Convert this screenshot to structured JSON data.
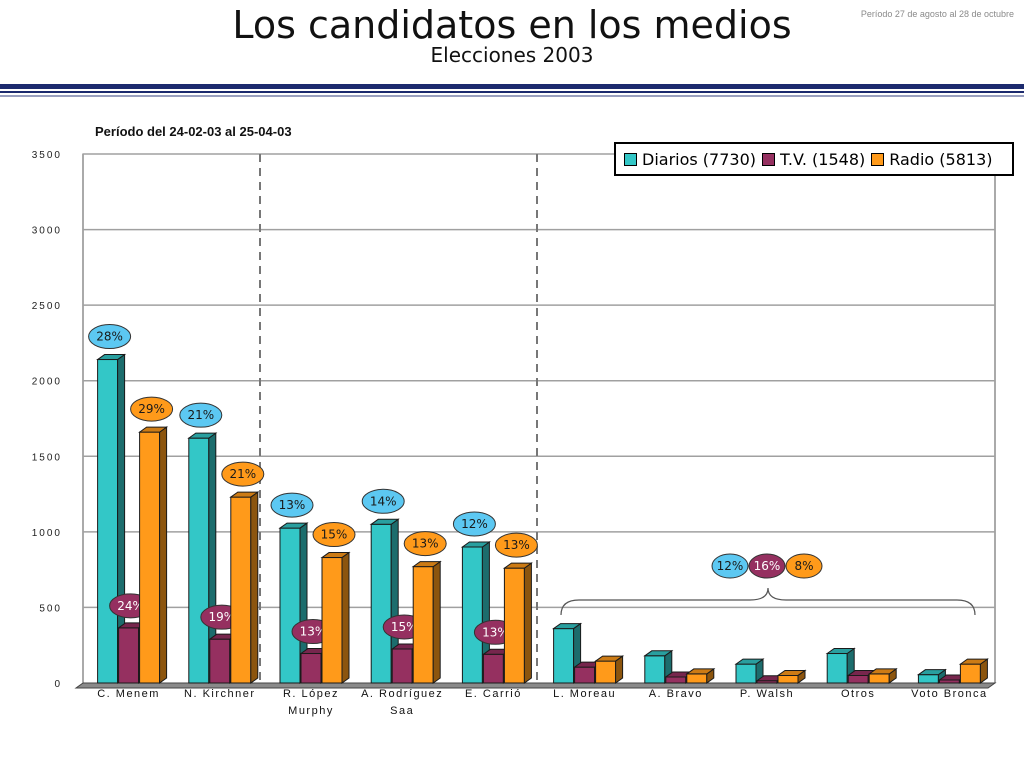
{
  "header": {
    "title": "Los candidatos en los medios",
    "subtitle": "Elecciones 2003",
    "note": "Período 27 de agosto al 28 de octubre"
  },
  "chart_data": {
    "type": "bar",
    "period_label": "Período del 24-02-03 al 25-04-03",
    "categories": [
      [
        "C. Menem"
      ],
      [
        "N. Kirchner"
      ],
      [
        "R. López",
        "Murphy"
      ],
      [
        "A. Rodríguez",
        "Saa"
      ],
      [
        "E. Carrió"
      ],
      [
        "L. Moreau"
      ],
      [
        "A. Bravo"
      ],
      [
        "P. Walsh"
      ],
      [
        "Otros"
      ],
      [
        "Voto Bronca"
      ]
    ],
    "series": [
      {
        "name": "Diarios (7730)",
        "color": "#33c7c7",
        "values": [
          2140,
          1620,
          1025,
          1050,
          900,
          360,
          180,
          125,
          195,
          55
        ],
        "labels": [
          "28%",
          "21%",
          "13%",
          "14%",
          "12%",
          null,
          null,
          null,
          null,
          null
        ]
      },
      {
        "name": "T.V. (1548)",
        "color": "#953060",
        "values": [
          365,
          290,
          195,
          225,
          190,
          105,
          40,
          15,
          50,
          20
        ],
        "labels": [
          "24%",
          "19%",
          "13%",
          "15%",
          "13%",
          null,
          null,
          null,
          null,
          null
        ]
      },
      {
        "name": "Radio (5813)",
        "color": "#ff9a1a",
        "values": [
          1660,
          1230,
          830,
          770,
          760,
          145,
          60,
          50,
          60,
          125
        ],
        "labels": [
          "29%",
          "21%",
          "15%",
          "13%",
          "13%",
          null,
          null,
          null,
          null,
          null
        ]
      }
    ],
    "group_labels": [
      "12%",
      "16%",
      "8%"
    ],
    "ylim": [
      0,
      3500
    ],
    "yticks": [
      0,
      500,
      1000,
      1500,
      2000,
      2500,
      3000,
      3500
    ],
    "grid": true,
    "legend_position": "top-right"
  }
}
